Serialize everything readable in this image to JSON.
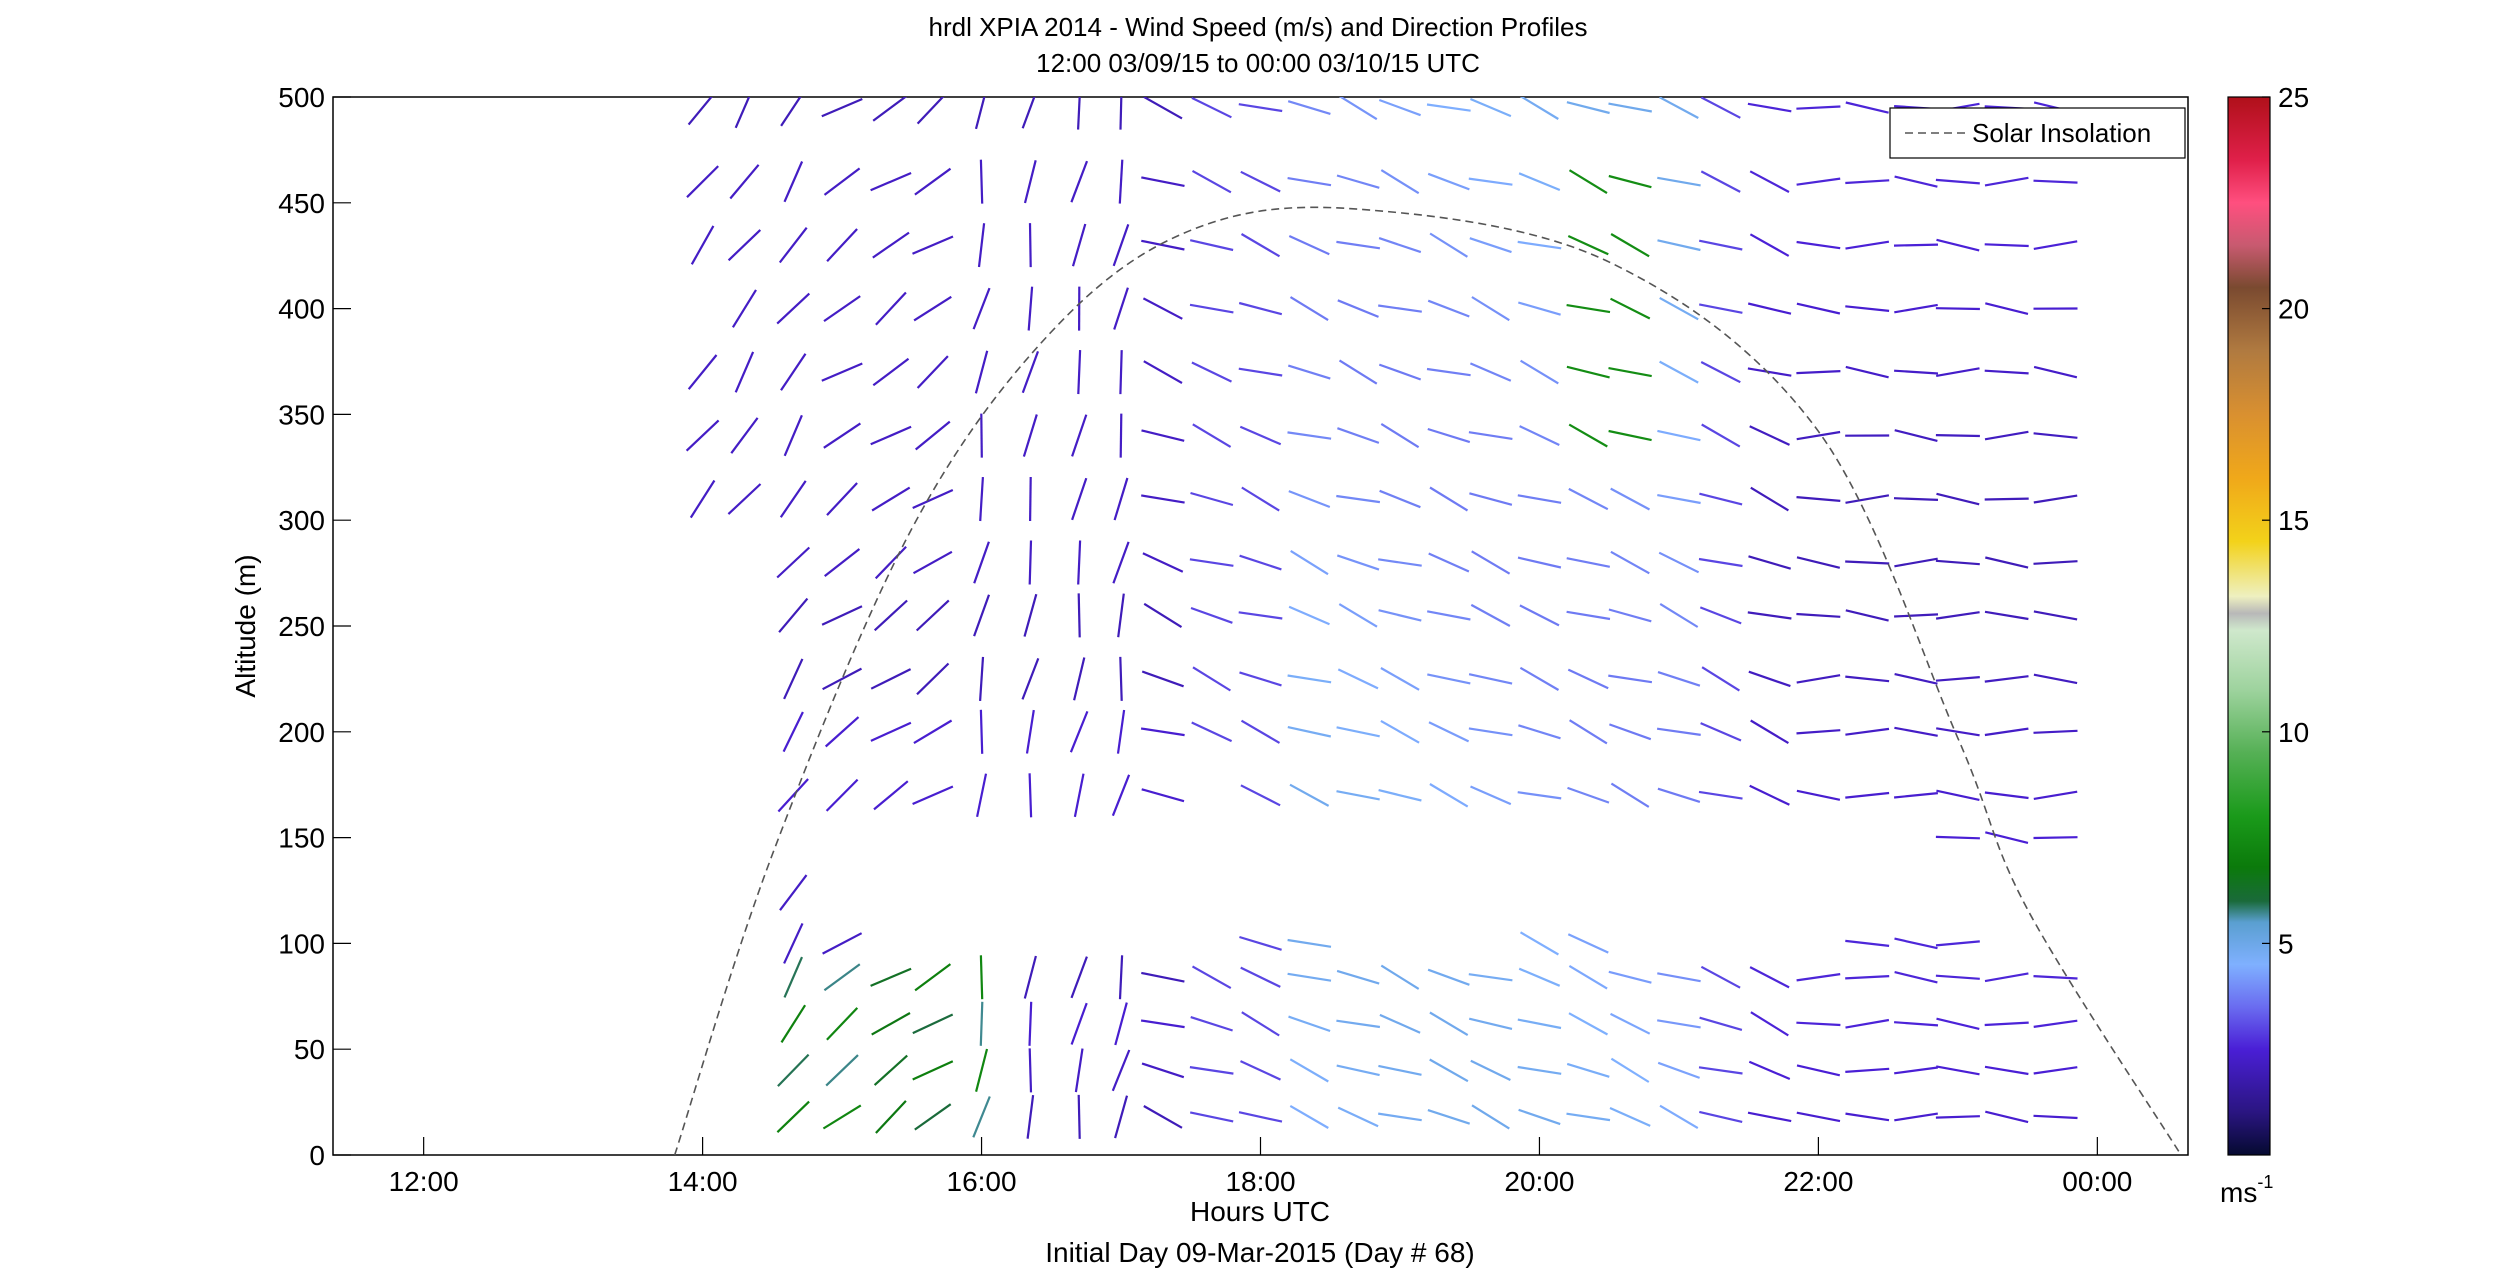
{
  "figure": {
    "title_line1": "hrdl XPIA 2014 - Wind Speed (m/s) and Direction Profiles",
    "title_line2": "12:00 03/09/15 to 00:00 03/10/15  UTC",
    "footer": "Initial Day 09-Mar-2015 (Day # 68)"
  },
  "chart_data": {
    "type": "scatter",
    "plot_kind": "wind barbs (line segments oriented by direction, colored by speed)",
    "title": "hrdl XPIA 2014 - Wind Speed (m/s) and Direction Profiles",
    "subtitle": "12:00 03/09/15 to 00:00 03/10/15  UTC",
    "xlabel": "Hours UTC",
    "ylabel": "Altitude (m)",
    "x_unit": "hours after 12:00 UTC 09-Mar-2015",
    "xlim": [
      -0.65,
      12.65
    ],
    "ylim": [
      0,
      500
    ],
    "x_ticks": [
      {
        "value": 0,
        "label": "12:00"
      },
      {
        "value": 2,
        "label": "14:00"
      },
      {
        "value": 4,
        "label": "16:00"
      },
      {
        "value": 6,
        "label": "18:00"
      },
      {
        "value": 8,
        "label": "20:00"
      },
      {
        "value": 10,
        "label": "22:00"
      },
      {
        "value": 12,
        "label": "00:00"
      }
    ],
    "y_ticks": [
      0,
      50,
      100,
      150,
      200,
      250,
      300,
      350,
      400,
      450,
      500
    ],
    "grid": false,
    "legend": {
      "position": "top-right",
      "entries": [
        {
          "label": "Solar Insolation",
          "style": "dashed",
          "color": "#555555"
        }
      ]
    },
    "colorbar": {
      "label": "ms-1",
      "label_main": "ms",
      "label_sup": "-1",
      "range": [
        0,
        25
      ],
      "ticks": [
        5,
        10,
        15,
        20,
        25
      ],
      "stops": [
        {
          "v": 0,
          "c": "#050a30"
        },
        {
          "v": 1,
          "c": "#2a1580"
        },
        {
          "v": 2.5,
          "c": "#4a1fd6"
        },
        {
          "v": 3.5,
          "c": "#6a6cf0"
        },
        {
          "v": 4.5,
          "c": "#7fb0ff"
        },
        {
          "v": 5.5,
          "c": "#5a9fd0"
        },
        {
          "v": 6,
          "c": "#1a6a3a"
        },
        {
          "v": 6.8,
          "c": "#0b7a0b"
        },
        {
          "v": 8,
          "c": "#1a9a1a"
        },
        {
          "v": 9.5,
          "c": "#55b055"
        },
        {
          "v": 11,
          "c": "#9ed39e"
        },
        {
          "v": 12.4,
          "c": "#cfe8cc"
        },
        {
          "v": 12.8,
          "c": "#b8b8b8"
        },
        {
          "v": 13.2,
          "c": "#eef0c0"
        },
        {
          "v": 14.5,
          "c": "#f3d21a"
        },
        {
          "v": 16,
          "c": "#f0a81a"
        },
        {
          "v": 17.5,
          "c": "#d99030"
        },
        {
          "v": 19,
          "c": "#b07a40"
        },
        {
          "v": 20.5,
          "c": "#7a4a30"
        },
        {
          "v": 21.5,
          "c": "#c85a70"
        },
        {
          "v": 22.5,
          "c": "#ff4f7f"
        },
        {
          "v": 23.5,
          "c": "#e0204a"
        },
        {
          "v": 25,
          "c": "#b0101a"
        }
      ]
    },
    "solar_insolation": {
      "name": "Solar Insolation",
      "points": [
        {
          "x": 1.8,
          "y": 0
        },
        {
          "x": 2.5,
          "y": 142
        },
        {
          "x": 3.5,
          "y": 296
        },
        {
          "x": 4.5,
          "y": 389
        },
        {
          "x": 5.5,
          "y": 437
        },
        {
          "x": 6.7,
          "y": 447
        },
        {
          "x": 8.5,
          "y": 422
        },
        {
          "x": 10.0,
          "y": 342
        },
        {
          "x": 11.0,
          "y": 197
        },
        {
          "x": 11.5,
          "y": 116
        },
        {
          "x": 12.6,
          "y": 0
        }
      ]
    },
    "series": [
      {
        "name": "",
        "description": "wind barbs: x = time (h after 12:00 UTC), y = altitude (m), dir = segment angle (deg, 0 = horizontal), spd = speed (m/s); 30 time columns x 19 altitude rows, only gates with valid returns",
        "x_times": [
          2.0,
          2.3,
          2.65,
          3.0,
          3.35,
          3.65,
          4.0,
          4.35,
          4.7,
          5.0,
          5.3,
          5.65,
          6.0,
          6.35,
          6.7,
          7.0,
          7.35,
          7.65,
          8.0,
          8.35,
          8.65,
          9.0,
          9.3,
          9.65,
          10.0,
          10.35,
          10.7,
          11.0,
          11.35,
          11.7
        ],
        "altitudes": [
          18,
          40,
          62,
          84,
          100,
          124,
          150,
          170,
          200,
          225,
          255,
          280,
          310,
          340,
          370,
          400,
          430,
          460,
          495
        ],
        "valid_cols": {
          "18": [
            2,
            29
          ],
          "40": [
            2,
            29
          ],
          "62": [
            2,
            29
          ],
          "84": [
            2,
            29
          ],
          "100": [
            2,
            29
          ],
          "124": [
            2,
            2
          ],
          "150": [
            27,
            29
          ],
          "170": [
            2,
            29
          ],
          "200": [
            2,
            29
          ],
          "225": [
            2,
            29
          ],
          "255": [
            2,
            29
          ],
          "280": [
            2,
            29
          ],
          "310": [
            0,
            29
          ],
          "340": [
            0,
            29
          ],
          "370": [
            0,
            29
          ],
          "400": [
            0,
            29
          ],
          "430": [
            0,
            29
          ],
          "460": [
            0,
            29
          ],
          "495": [
            0,
            29
          ]
        },
        "gaps": [
          {
            "y": 100,
            "cols": [
              4,
              5,
              6,
              7,
              8,
              9,
              10,
              11,
              14,
              15,
              16,
              17,
              20,
              21,
              22,
              23,
              24,
              28,
              29
            ]
          },
          {
            "y": 170,
            "cols": [
              11
            ]
          },
          {
            "y": 400,
            "cols": [
              0
            ]
          }
        ],
        "direction_pattern_deg": [
          {
            "x_from": 1.8,
            "x_to": 3.0,
            "dir": 55
          },
          {
            "x_from": 3.0,
            "x_to": 4.0,
            "dir": 35
          },
          {
            "x_from": 4.0,
            "x_to": 5.2,
            "dir": 80
          },
          {
            "x_from": 5.2,
            "x_to": 10.0,
            "dir": -20
          },
          {
            "x_from": 10.0,
            "x_to": 12.0,
            "dir": -2
          }
        ],
        "speed_pattern_ms": [
          {
            "region": "morning lower levels (14:00-16:00, <100 m)",
            "spd": 7
          },
          {
            "region": "early afternoon (14:00-17:00)",
            "spd": 2
          },
          {
            "region": "afternoon mid levels (18:00-21:00)",
            "spd": 4.5
          },
          {
            "region": "peak near 20:30, 330-470 m",
            "spd": 8
          },
          {
            "region": "evening (after 21:00)",
            "spd": 2.5
          }
        ]
      }
    ]
  }
}
